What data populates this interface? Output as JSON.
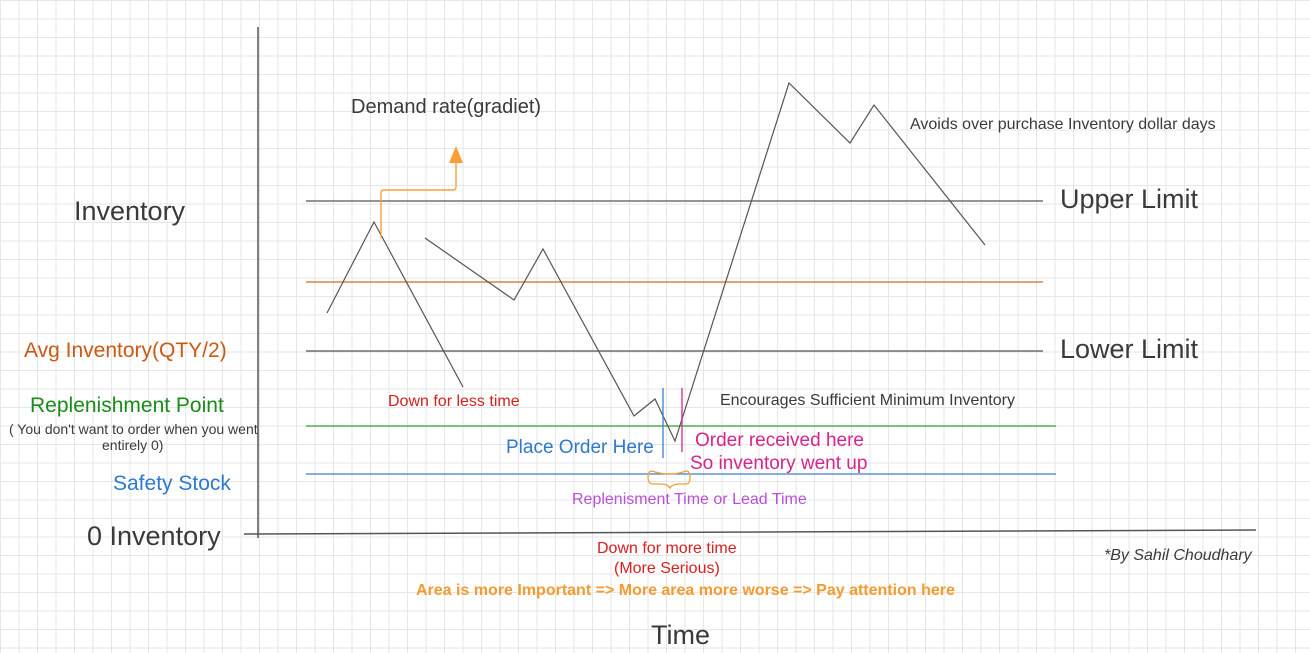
{
  "colors": {
    "axis": "#555555",
    "gray_line": "#555555",
    "avg_line": "#d4691c",
    "replenish_line": "#2e9e2e",
    "safety_line": "#3a7fd5",
    "accent_orange": "#f7a037",
    "red": "#d62020",
    "magenta": "#d6258a",
    "purple": "#b84fd6",
    "blue": "#2e78d0",
    "green": "#1a8a1a"
  },
  "labels": {
    "inventory": "Inventory",
    "avg_inventory": "Avg Inventory(QTY/2)",
    "replenishment_point": "Replenishment Point",
    "replenishment_note_line1": "( You don't want to order when you went",
    "replenishment_note_line2": "entirely 0)",
    "safety_stock": "Safety Stock",
    "zero_inventory": "0 Inventory",
    "upper_limit": "Upper Limit",
    "lower_limit": "Lower Limit",
    "demand_rate": "Demand rate(gradiet)",
    "avoids_over_purchase": "Avoids over purchase Inventory dollar days",
    "down_less_time": "Down for less time",
    "encourages_min": "Encourages Sufficient Minimum Inventory",
    "place_order": "Place Order Here",
    "order_received_line1": "Order received here",
    "order_received_line2": "So inventory went up",
    "lead_time": "Replenisment Time or Lead Time",
    "down_more_time_line1": "Down for more time",
    "down_more_time_line2": "(More Serious)",
    "area_note": "Area is more Important => More area more worse => Pay attention here",
    "time": "Time",
    "author": "*By Sahil Choudhary"
  }
}
